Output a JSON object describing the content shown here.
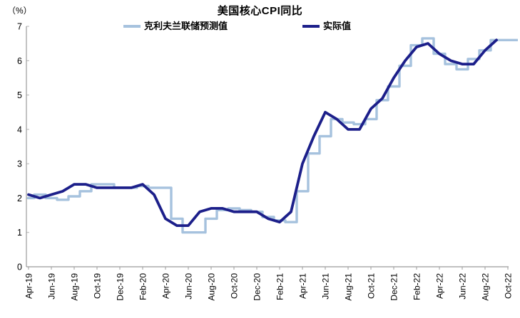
{
  "title": "美国核心CPI同比",
  "y_unit": "（%）",
  "legend": [
    {
      "label": "克利夫兰联储预测值",
      "color": "#a6c2de"
    },
    {
      "label": "实际值",
      "color": "#1c1f8a"
    }
  ],
  "chart_data": {
    "type": "line",
    "title": "美国核心CPI同比",
    "y_unit": "（%）",
    "x": [
      "Apr-19",
      "May-19",
      "Jun-19",
      "Jul-19",
      "Aug-19",
      "Sep-19",
      "Oct-19",
      "Nov-19",
      "Dec-19",
      "Jan-20",
      "Feb-20",
      "Mar-20",
      "Apr-20",
      "May-20",
      "Jun-20",
      "Jul-20",
      "Aug-20",
      "Sep-20",
      "Oct-20",
      "Nov-20",
      "Dec-20",
      "Jan-21",
      "Feb-21",
      "Mar-21",
      "Apr-21",
      "May-21",
      "Jun-21",
      "Jul-21",
      "Aug-21",
      "Sep-21",
      "Oct-21",
      "Nov-21",
      "Dec-21",
      "Jan-22",
      "Feb-22",
      "Mar-22",
      "Apr-22",
      "May-22",
      "Jun-22",
      "Jul-22",
      "Aug-22",
      "Sep-22",
      "Oct-22"
    ],
    "x_tick_labels": [
      "Apr-19",
      "Jun-19",
      "Aug-19",
      "Oct-19",
      "Dec-19",
      "Feb-20",
      "Apr-20",
      "Jun-20",
      "Aug-20",
      "Oct-20",
      "Dec-20",
      "Feb-21",
      "Apr-21",
      "Jun-21",
      "Aug-21",
      "Oct-21",
      "Dec-21",
      "Feb-22",
      "Apr-22",
      "Jun-22",
      "Aug-22",
      "Oct-22"
    ],
    "x_tick_every": 2,
    "series": [
      {
        "name": "克利夫兰联储预测值",
        "style": "step",
        "color": "#a6c2de",
        "values": [
          2.0,
          2.1,
          2.0,
          1.95,
          2.05,
          2.2,
          2.4,
          2.4,
          2.3,
          2.3,
          2.35,
          2.3,
          2.3,
          1.4,
          1.0,
          1.0,
          1.4,
          1.65,
          1.7,
          1.65,
          1.6,
          1.45,
          1.35,
          1.3,
          2.2,
          3.3,
          3.8,
          4.3,
          4.2,
          4.15,
          4.3,
          4.85,
          5.25,
          5.85,
          6.45,
          6.65,
          6.2,
          5.9,
          5.75,
          6.05,
          6.3,
          6.6,
          6.6
        ]
      },
      {
        "name": "实际值",
        "style": "line",
        "color": "#1c1f8a",
        "values": [
          2.1,
          2.0,
          2.1,
          2.2,
          2.4,
          2.4,
          2.3,
          2.3,
          2.3,
          2.3,
          2.4,
          2.1,
          1.4,
          1.2,
          1.2,
          1.6,
          1.7,
          1.7,
          1.6,
          1.6,
          1.6,
          1.4,
          1.3,
          1.6,
          3.0,
          3.8,
          4.5,
          4.3,
          4.0,
          4.0,
          4.6,
          4.9,
          5.5,
          6.0,
          6.4,
          6.5,
          6.2,
          6.0,
          5.9,
          5.9,
          6.3,
          6.6
        ]
      }
    ],
    "ylim": [
      0,
      7
    ],
    "yticks": [
      0,
      1,
      2,
      3,
      4,
      5,
      6,
      7
    ],
    "grid": "off",
    "legend_position": "top"
  }
}
